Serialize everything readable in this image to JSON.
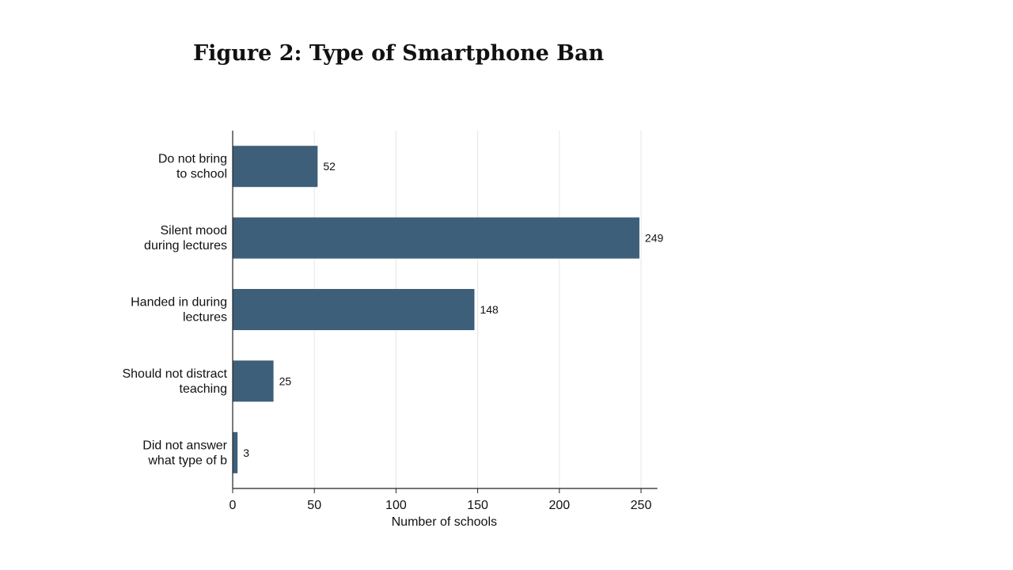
{
  "figure": {
    "title": "Figure 2: Type of Smartphone Ban"
  },
  "chart_data": {
    "type": "bar",
    "orientation": "horizontal",
    "categories": [
      [
        "Do not bring",
        "to school"
      ],
      [
        "Silent mood",
        "during lectures"
      ],
      [
        "Handed in during",
        "lectures"
      ],
      [
        "Should not distract",
        "teaching"
      ],
      [
        "Did not answer",
        "what type of b"
      ]
    ],
    "values": [
      52,
      249,
      148,
      25,
      3
    ],
    "xlabel": "Number of schools",
    "ylabel": "",
    "xlim": [
      0,
      260
    ],
    "xticks": [
      0,
      50,
      100,
      150,
      200,
      250
    ],
    "grid": true,
    "bar_color": "#3e5f7a",
    "grid_color": "#e6e6e6"
  }
}
